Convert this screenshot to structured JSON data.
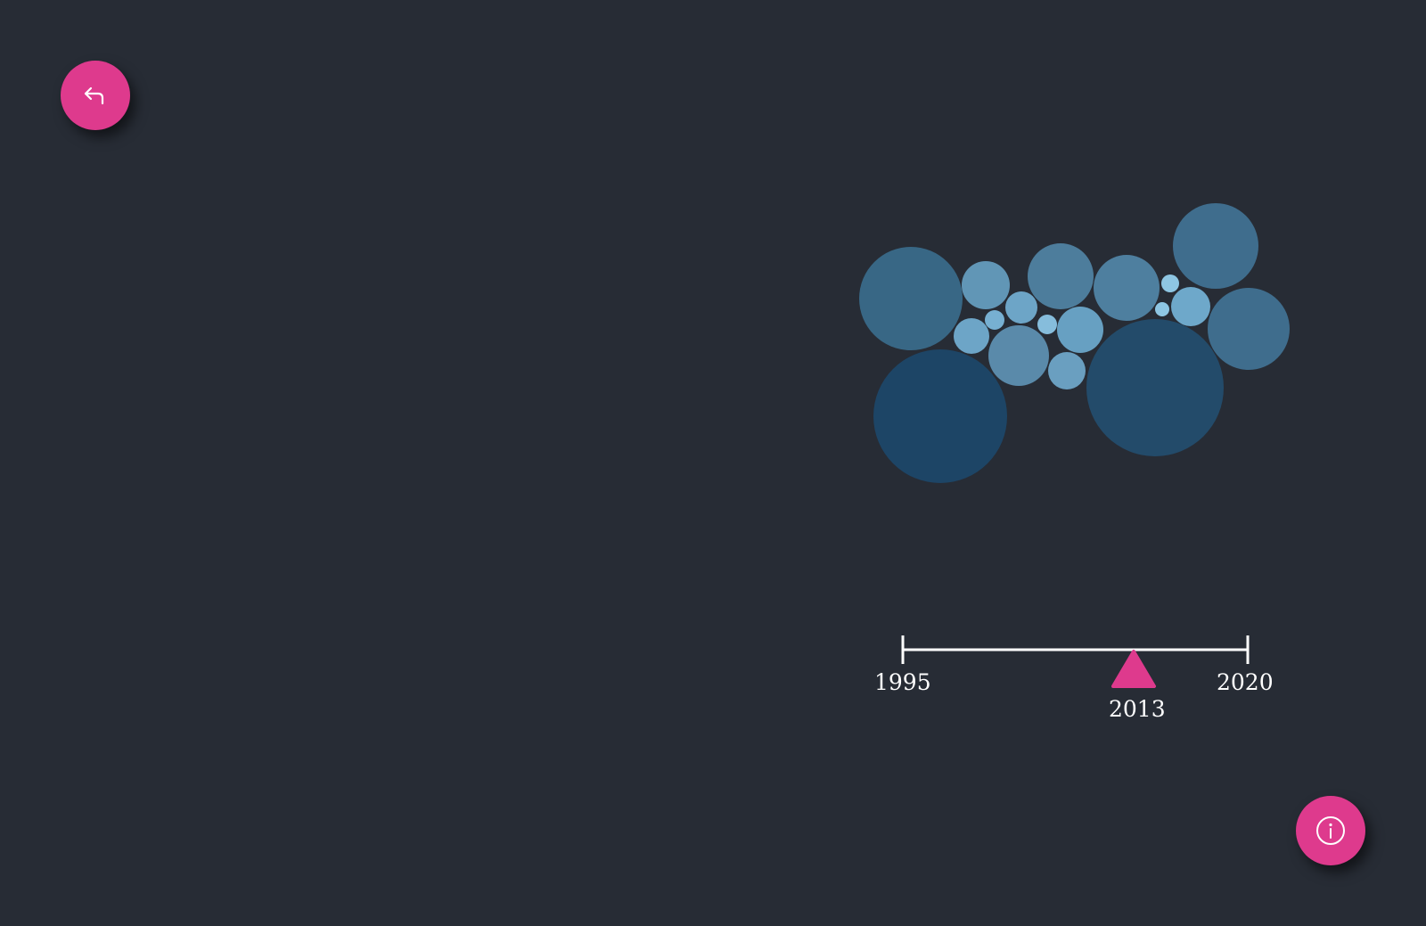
{
  "colors": {
    "background": "#272c35",
    "accent": "#de3a8d",
    "axis": "#ffffff",
    "label": "#ffffff"
  },
  "back_button": {
    "icon": "return-arrow-icon"
  },
  "info_button": {
    "icon": "info-icon"
  },
  "bubbles": [
    {
      "color": "#386785"
    },
    {
      "color": "#1d4566"
    },
    {
      "color": "#6196b6"
    },
    {
      "color": "#6da5c7"
    },
    {
      "color": "#77b0d2"
    },
    {
      "color": "#6da5c7"
    },
    {
      "color": "#5a8aaa"
    },
    {
      "color": "#4d7d9c"
    },
    {
      "color": "#86bddc"
    },
    {
      "color": "#67a0c2"
    },
    {
      "color": "#6a9fc0"
    },
    {
      "color": "#4e7f9f"
    },
    {
      "color": "#234b6a"
    },
    {
      "color": "#3f6d8d"
    },
    {
      "color": "#8ec6e3"
    },
    {
      "color": "#8ec6e3"
    },
    {
      "color": "#6ea8ca"
    },
    {
      "color": "#3f6d8d"
    }
  ],
  "timeline": {
    "start": "1995",
    "end": "2020",
    "current": "2013",
    "start_value": 1995,
    "end_value": 2020,
    "current_value": 2013
  }
}
